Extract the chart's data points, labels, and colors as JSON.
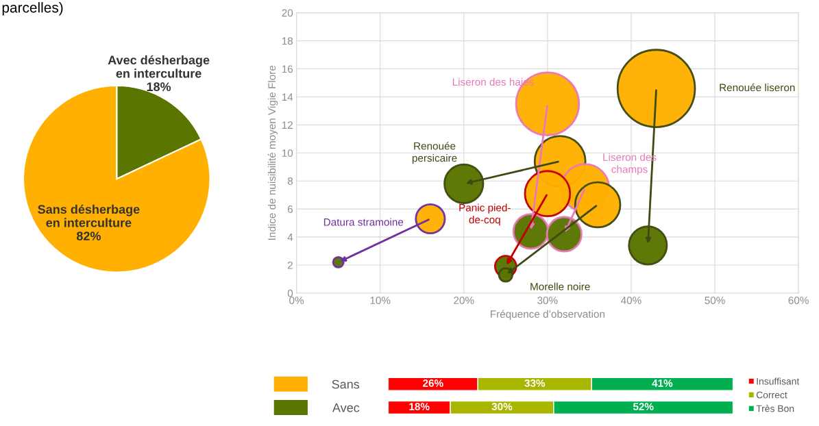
{
  "chart_data": [
    {
      "type": "pie",
      "annotations": [
        "parcelles)"
      ],
      "categories": [
        "Avec désherbage\nen interculture",
        "Sans désherbage\nen interculture"
      ],
      "values": [
        18,
        82
      ],
      "colors": [
        "#5a7500",
        "#ffb000"
      ],
      "value_labels": [
        "18%",
        "82%"
      ]
    },
    {
      "type": "bubble",
      "xlabel": "Fréquence d’observation",
      "ylabel": "Indice de nuisibilité moyen Vigie Flore",
      "xlim": [
        0,
        60
      ],
      "ylim": [
        0,
        20
      ],
      "xticks": [
        {
          "value": 0,
          "label": "0%"
        },
        {
          "value": 10,
          "label": "10%"
        },
        {
          "value": 20,
          "label": "20%"
        },
        {
          "value": 30,
          "label": "30%"
        },
        {
          "value": 40,
          "label": "40%"
        },
        {
          "value": 50,
          "label": "50%"
        },
        {
          "value": 60,
          "label": "60%"
        }
      ],
      "yticks": [
        0,
        2,
        4,
        6,
        8,
        10,
        12,
        14,
        16,
        18,
        20
      ],
      "grid": true,
      "annotations": [
        "Liseron des haies",
        "Renouée liseron",
        "Renouée\npersicaire",
        "Liseron des\nchamps",
        "Panic pied-\nde-coq",
        "Morelle noire",
        "Datura stramoine"
      ],
      "series": [
        {
          "color": "#ffb000",
          "x": [
            30,
            43,
            31.5,
            34.5,
            30,
            36,
            16
          ],
          "values": [
            13.5,
            14.6,
            9.4,
            7.5,
            7.1,
            6.3,
            5.3
          ],
          "sizes": [
            0.66,
            1,
            0.43,
            0.38,
            0.34,
            0.34,
            0.14
          ]
        },
        {
          "color": "#5a7500",
          "x": [
            28,
            42,
            20,
            32,
            25,
            25,
            5
          ],
          "values": [
            4.4,
            3.4,
            7.8,
            4.2,
            1.9,
            1.3,
            2.2
          ],
          "sizes": [
            0.2,
            0.24,
            0.25,
            0.2,
            0.075,
            0.03,
            0.018
          ]
        }
      ]
    },
    {
      "type": "bar",
      "orientation": "horizontal",
      "stacked": true,
      "legend": "right",
      "tick_labels": "y",
      "categories": [
        "Sans",
        "Avec"
      ],
      "series": [
        {
          "name": "Insuffisant",
          "color": "#ff0000",
          "values": [
            26,
            18
          ],
          "value_labels": [
            "26%",
            "18%"
          ]
        },
        {
          "name": "Correct",
          "color": "#a9b600",
          "values": [
            33,
            30
          ],
          "value_labels": [
            "33%",
            "30%"
          ]
        },
        {
          "name": "Très Bon",
          "color": "#00b050",
          "values": [
            41,
            52
          ],
          "value_labels": [
            "41%",
            "52%"
          ]
        }
      ]
    }
  ]
}
